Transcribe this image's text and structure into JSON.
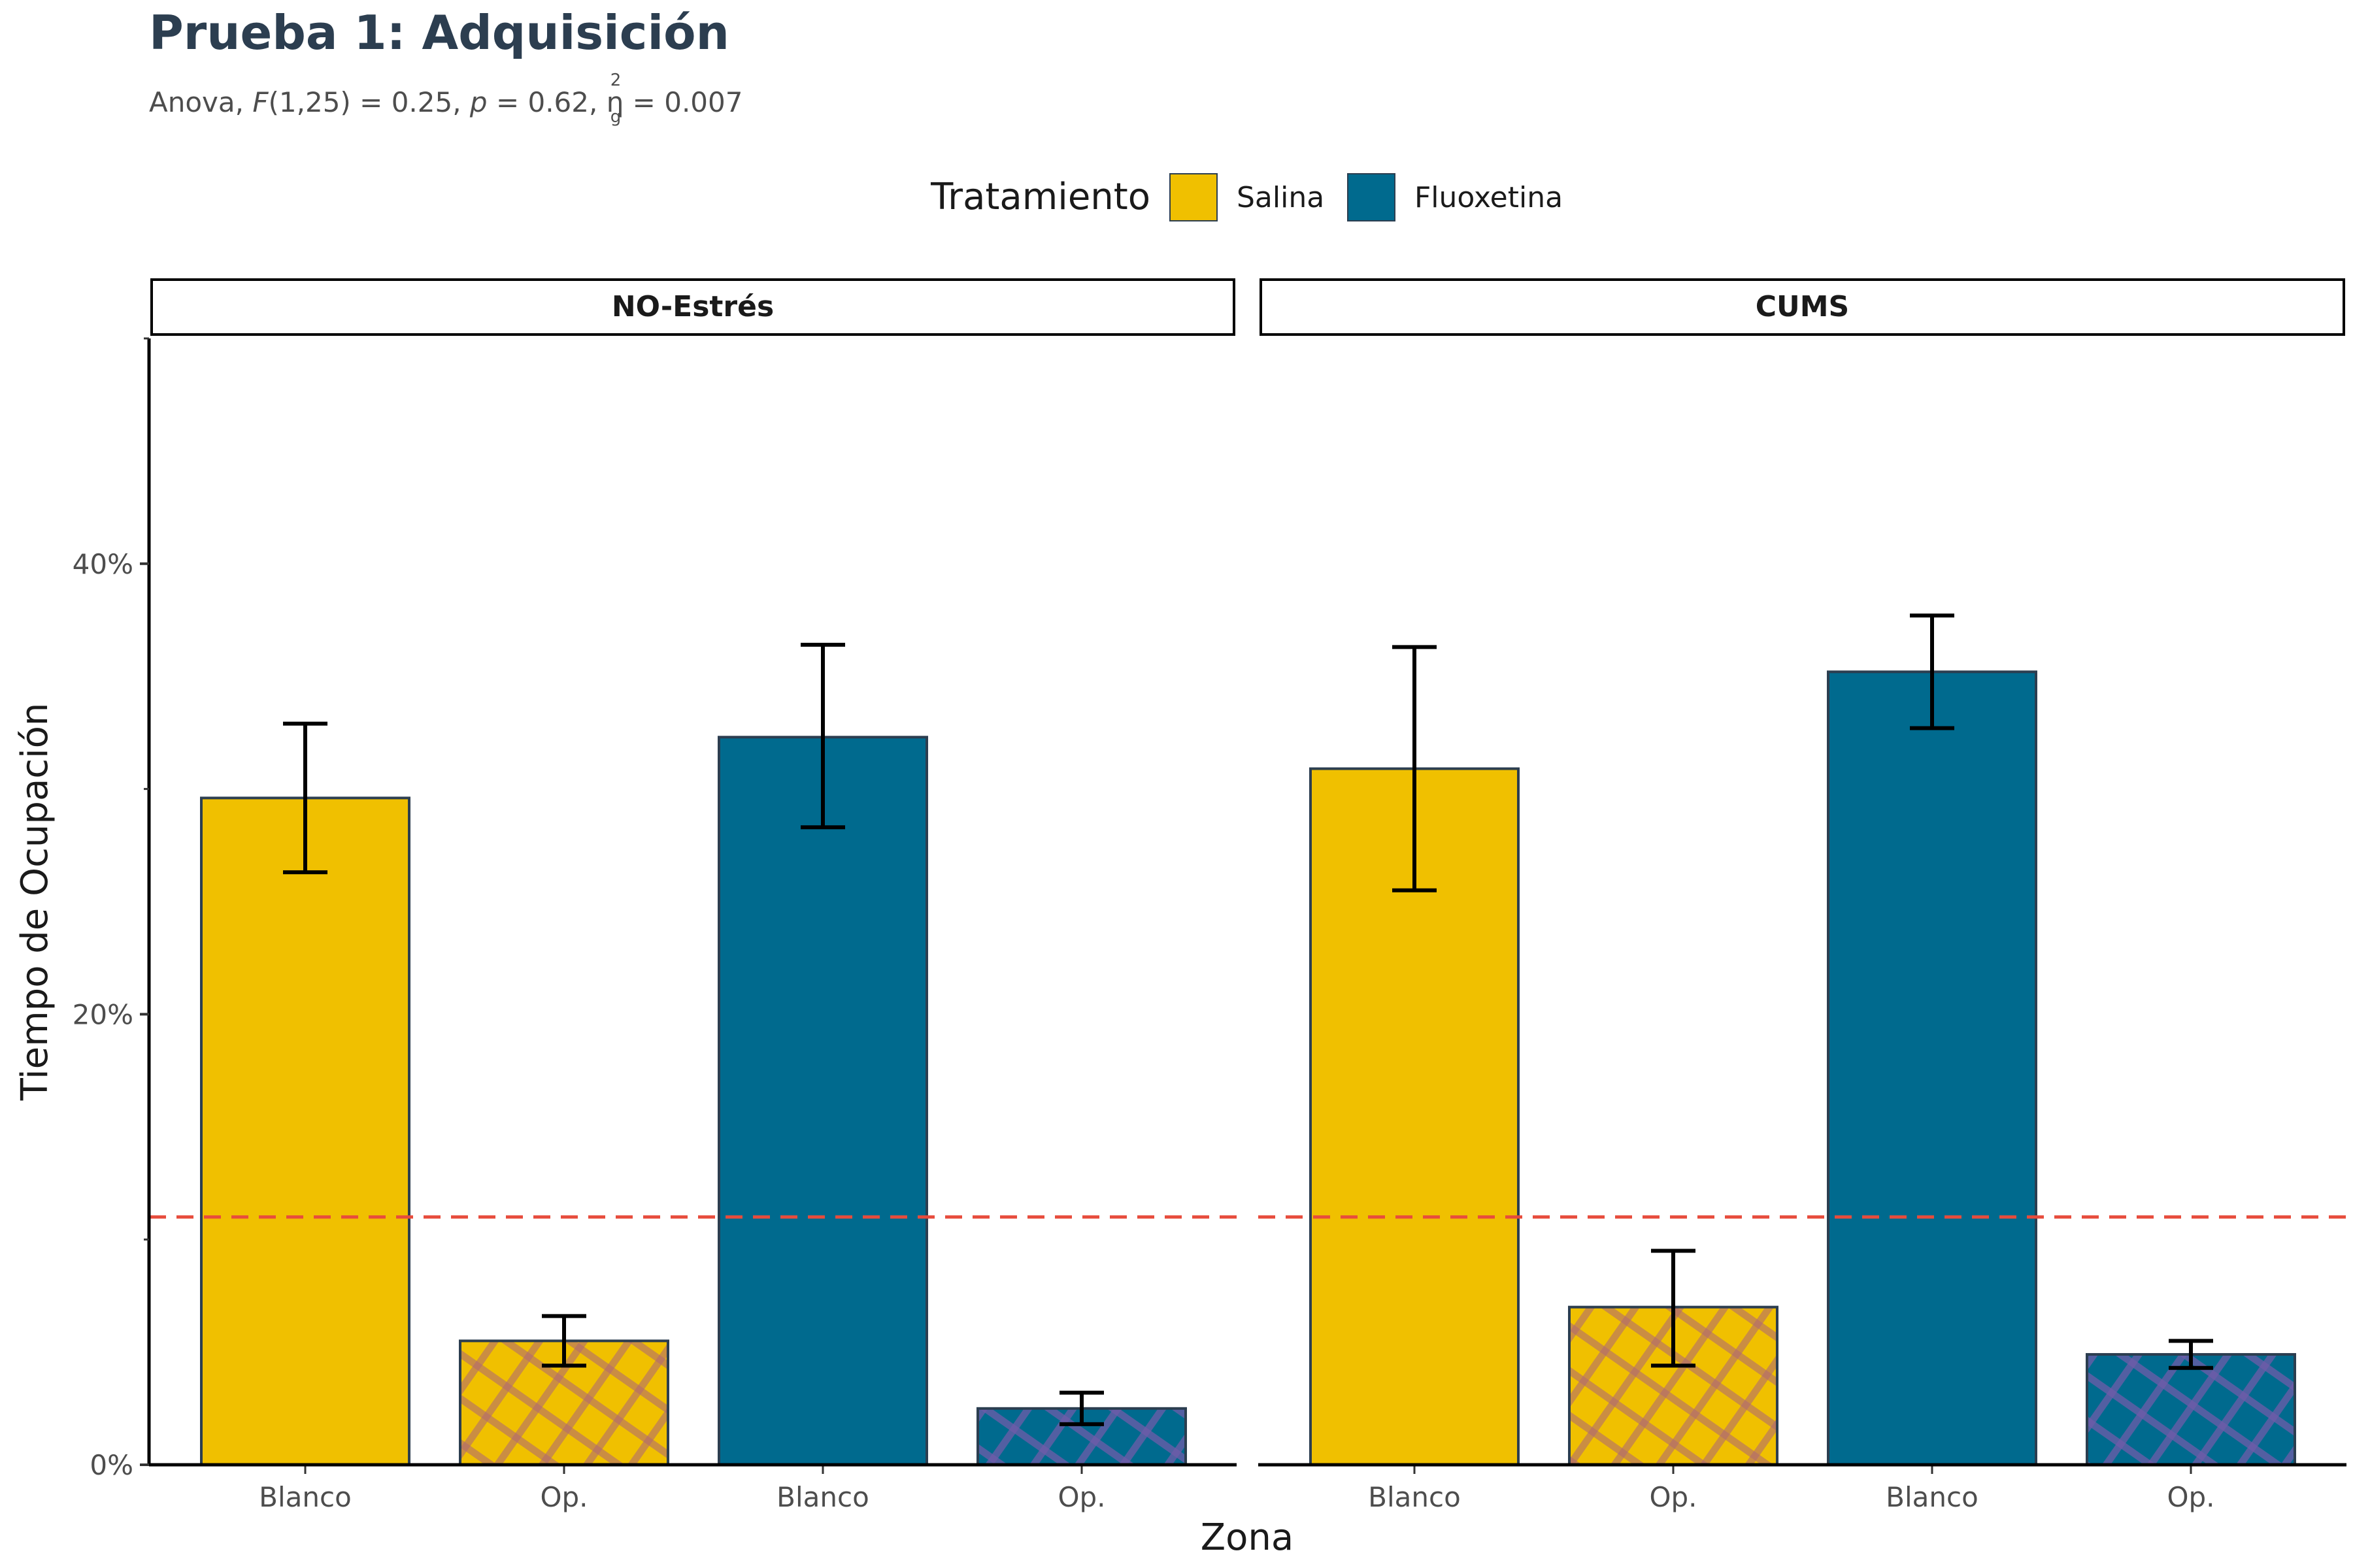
{
  "chart_data": {
    "type": "bar",
    "title": "Prueba 1: Adquisición",
    "subtitle": {
      "prefix": "Anova, ",
      "F_symbol": "F",
      "F_text": "(1,25) = 0.25, ",
      "p_symbol": "p",
      "p_text": " = 0.62, ",
      "eta_symbol": "η",
      "eta_sup": "2",
      "eta_sub": "g",
      "eta_text": " = 0.007"
    },
    "xlabel": "Zona",
    "ylabel": "Tiempo de Ocupación",
    "ylim": [
      0,
      50
    ],
    "y_ticks": [
      0,
      20,
      40
    ],
    "y_minor_ticks": [
      10,
      30,
      50
    ],
    "y_tick_labels": [
      "0%",
      "20%",
      "40%"
    ],
    "reference_line": {
      "value": 11,
      "color": "#e74c3c",
      "style": "dashed"
    },
    "legend": {
      "title": "Tratamiento",
      "position": "top",
      "items": [
        {
          "name": "Salina",
          "color": "#f0c000"
        },
        {
          "name": "Fluoxetina",
          "color": "#006a8e"
        }
      ]
    },
    "grid": false,
    "facets": [
      {
        "label": "NO-Estrés",
        "bars": [
          {
            "category": "Blanco",
            "series": "Salina",
            "value": 29.6,
            "err_low": 26.3,
            "err_high": 32.9,
            "pattern": false
          },
          {
            "category": "Op.",
            "series": "Salina",
            "value": 5.5,
            "err_low": 4.4,
            "err_high": 6.6,
            "pattern": true
          },
          {
            "category": "Blanco",
            "series": "Fluoxetina",
            "value": 32.3,
            "err_low": 28.3,
            "err_high": 36.4,
            "pattern": false
          },
          {
            "category": "Op.",
            "series": "Fluoxetina",
            "value": 2.5,
            "err_low": 1.8,
            "err_high": 3.2,
            "pattern": true
          }
        ]
      },
      {
        "label": "CUMS",
        "bars": [
          {
            "category": "Blanco",
            "series": "Salina",
            "value": 30.9,
            "err_low": 25.5,
            "err_high": 36.3,
            "pattern": false
          },
          {
            "category": "Op.",
            "series": "Salina",
            "value": 7.0,
            "err_low": 4.4,
            "err_high": 9.5,
            "pattern": true
          },
          {
            "category": "Blanco",
            "series": "Fluoxetina",
            "value": 35.2,
            "err_low": 32.7,
            "err_high": 37.7,
            "pattern": false
          },
          {
            "category": "Op.",
            "series": "Fluoxetina",
            "value": 4.9,
            "err_low": 4.3,
            "err_high": 5.5,
            "pattern": true
          }
        ]
      }
    ]
  }
}
